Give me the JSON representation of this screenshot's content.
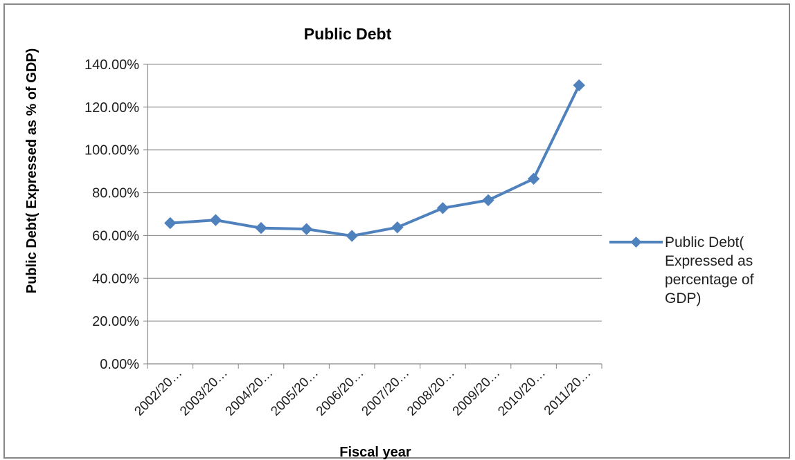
{
  "chart_data": {
    "type": "line",
    "title": "Public Debt",
    "xlabel": "Fiscal year",
    "ylabel": "Public Debt( Expressed as % of GDP)",
    "categories": [
      "2002/20…",
      "2003/20…",
      "2004/20…",
      "2005/20…",
      "2006/20…",
      "2007/20…",
      "2008/20…",
      "2009/20…",
      "2010/20…",
      "2011/20…"
    ],
    "y_ticks": [
      "0.00%",
      "20.00%",
      "40.00%",
      "60.00%",
      "80.00%",
      "100.00%",
      "120.00%",
      "140.00%"
    ],
    "ylim": [
      0,
      140
    ],
    "grid": true,
    "legend_position": "right",
    "series": [
      {
        "name": "Public Debt( Expressed as percentage of GDP)",
        "legend_lines": [
          "Public Debt(",
          "Expressed as",
          "percentage of",
          "GDP)"
        ],
        "values": [
          65.8,
          67.2,
          63.5,
          63.0,
          59.8,
          63.8,
          72.8,
          76.5,
          86.5,
          130.2
        ],
        "color": "#4f81bd",
        "marker": "diamond"
      }
    ]
  }
}
